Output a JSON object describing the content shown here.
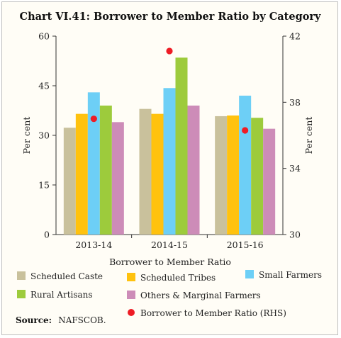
{
  "source_label": "Source:",
  "source_text": "NAFSCOB.",
  "chart_data": {
    "type": "bar",
    "title": "Chart VI.41: Borrower to Member Ratio by Category",
    "xlabel": "Borrower to Member Ratio",
    "ylabel": "Per cent",
    "ylabel_right": "Per cent",
    "ylim": [
      0,
      60
    ],
    "yticks": [
      "0",
      "15",
      "30",
      "45",
      "60"
    ],
    "ylim_right": [
      30,
      42
    ],
    "yticks_right": [
      "30",
      "34",
      "38",
      "42"
    ],
    "categories": [
      "2013-14",
      "2014-15",
      "2015-16"
    ],
    "series": [
      {
        "name": "Scheduled Caste",
        "color": "#c9c19c",
        "values": [
          32.3,
          38.0,
          35.8
        ]
      },
      {
        "name": "Scheduled Tribes",
        "color": "#ffc20e",
        "values": [
          36.5,
          36.5,
          36.0
        ]
      },
      {
        "name": "Small Farmers",
        "color": "#6dcff6",
        "values": [
          43.0,
          44.3,
          42.0
        ]
      },
      {
        "name": "Rural Artisans",
        "color": "#9dcb3c",
        "values": [
          39.0,
          53.5,
          35.3
        ]
      },
      {
        "name": "Others & Marginal Farmers",
        "color": "#cd8cb8",
        "values": [
          34.0,
          39.0,
          32.0
        ]
      }
    ],
    "rhs_series": {
      "name": "Borrower to Member Ratio (RHS)",
      "color": "#ee1c25",
      "values": [
        37.0,
        41.1,
        36.3
      ]
    },
    "grid": false,
    "legend": "bottom"
  }
}
